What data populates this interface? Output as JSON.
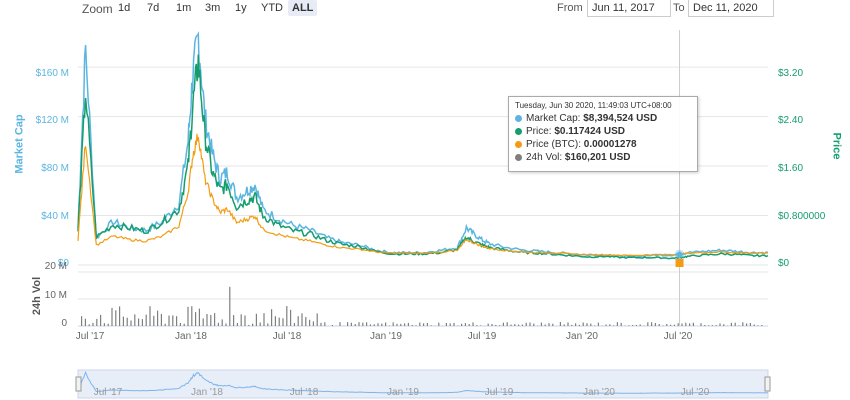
{
  "toolbar": {
    "zoom_label": "Zoom",
    "zoom_buttons": [
      "1d",
      "7d",
      "1m",
      "3m",
      "1y",
      "YTD",
      "ALL"
    ],
    "active_zoom": "ALL",
    "from_label": "From",
    "from_value": "Jun 11, 2017",
    "to_label": "To",
    "to_value": "Dec 11, 2020"
  },
  "tooltip": {
    "time": "Tuesday, Jun 30 2020, 11:49:03 UTC+08:00",
    "rows": [
      {
        "label": "Market Cap: ",
        "value": "$8,394,524 USD",
        "color": "#5bb5e0"
      },
      {
        "label": "Price: ",
        "value": "$0.117424 USD",
        "color": "#169d6e"
      },
      {
        "label": "Price (BTC): ",
        "value": "0.00001278",
        "color": "#f39c12"
      },
      {
        "label": "24h Vol: ",
        "value": "$160,201 USD",
        "color": "#7f7f7f"
      }
    ]
  },
  "chart_data": {
    "type": "line",
    "x": [
      "2017-06-11",
      "2017-06-25",
      "2017-07-15",
      "2017-08-15",
      "2017-09-15",
      "2017-10-15",
      "2017-11-15",
      "2017-12-15",
      "2018-01-01",
      "2018-01-10",
      "2018-01-20",
      "2018-02-01",
      "2018-02-15",
      "2018-03-01",
      "2018-03-15",
      "2018-04-01",
      "2018-04-20",
      "2018-05-05",
      "2018-05-20",
      "2018-06-15",
      "2018-07-15",
      "2018-08-15",
      "2018-09-15",
      "2018-10-15",
      "2018-11-15",
      "2018-12-15",
      "2019-01-15",
      "2019-02-15",
      "2019-03-15",
      "2019-04-15",
      "2019-05-15",
      "2019-06-01",
      "2019-06-15",
      "2019-07-01",
      "2019-07-15",
      "2019-08-15",
      "2019-09-15",
      "2019-10-15",
      "2019-11-15",
      "2019-12-15",
      "2020-01-15",
      "2020-02-15",
      "2020-03-15",
      "2020-04-15",
      "2020-05-15",
      "2020-06-15",
      "2020-06-30",
      "2020-07-15",
      "2020-08-15",
      "2020-09-15",
      "2020-10-15",
      "2020-11-15",
      "2020-12-11"
    ],
    "series": [
      {
        "name": "Market Cap",
        "axis": "Market Cap",
        "color": "#5bb5e0",
        "values": [
          30,
          175,
          22,
          35,
          30,
          28,
          35,
          50,
          100,
          155,
          185,
          120,
          90,
          70,
          75,
          55,
          60,
          65,
          45,
          38,
          32,
          28,
          22,
          18,
          16,
          12,
          10,
          10,
          10,
          12,
          14,
          30,
          25,
          20,
          17,
          14,
          12,
          11,
          10,
          9,
          8,
          8,
          7,
          7,
          8,
          8,
          8.4,
          10,
          11,
          12,
          11,
          10,
          10
        ]
      },
      {
        "name": "Price",
        "axis": "Price",
        "color": "#169d6e",
        "values": [
          0.55,
          2.8,
          0.45,
          0.65,
          0.6,
          0.55,
          0.7,
          0.9,
          1.6,
          2.6,
          3.3,
          2.1,
          1.5,
          1.2,
          1.3,
          0.95,
          1.05,
          1.1,
          0.8,
          0.65,
          0.55,
          0.5,
          0.4,
          0.33,
          0.3,
          0.22,
          0.18,
          0.18,
          0.18,
          0.2,
          0.25,
          0.45,
          0.38,
          0.32,
          0.28,
          0.24,
          0.2,
          0.19,
          0.17,
          0.15,
          0.13,
          0.14,
          0.12,
          0.12,
          0.12,
          0.11,
          0.117,
          0.14,
          0.16,
          0.18,
          0.17,
          0.15,
          0.15
        ]
      }
    ],
    "price_btc": {
      "name": "Price (BTC)",
      "color": "#f39c12"
    },
    "volume": {
      "name": "24h Vol",
      "color": "#7f7f7f"
    },
    "left_axis": {
      "title": "Market Cap",
      "ticks": [
        "$0",
        "$40 M",
        "$80 M",
        "$120 M",
        "$160 M"
      ],
      "values": [
        0,
        40,
        80,
        120,
        160
      ],
      "ylim": [
        0,
        190
      ]
    },
    "right_axis": {
      "title": "Price",
      "ticks": [
        "$0",
        "$0.800000",
        "$1.60",
        "$2.40",
        "$3.20"
      ],
      "values": [
        0,
        0.8,
        1.6,
        2.4,
        3.2
      ],
      "ylim": [
        0,
        3.8
      ]
    },
    "vol_axis": {
      "title": "24h Vol",
      "ticks": [
        "0",
        "10 M",
        "20 M"
      ]
    },
    "x_ticks": [
      "Jul '17",
      "Jan '18",
      "Jul '18",
      "Jan '19",
      "Jul '19",
      "Jan '20",
      "Jul '20"
    ],
    "navigator_ticks": [
      "Jul '17",
      "Jan '18",
      "Jul '18",
      "Jan '19",
      "Jul '19",
      "Jan '20",
      "Jul '20"
    ]
  }
}
